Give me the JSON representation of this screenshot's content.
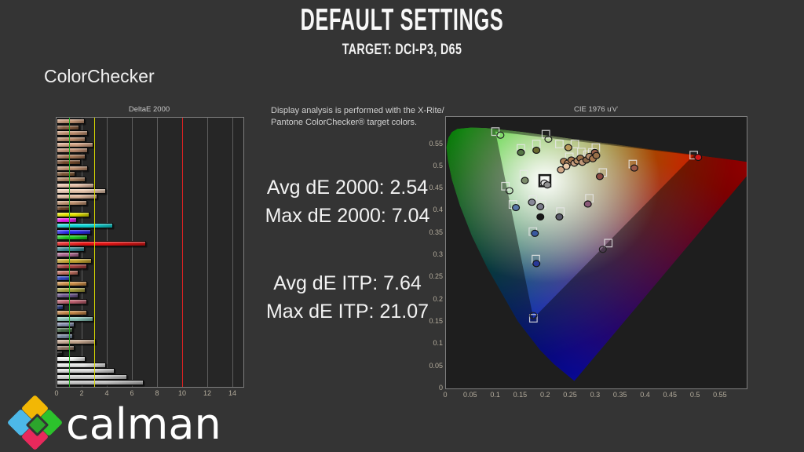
{
  "header": {
    "title": "DEFAULT SETTINGS",
    "subtitle": "TARGET: DCI-P3, D65",
    "section": "ColorChecker"
  },
  "note": {
    "line1": "Display analysis is performed with the X-Rite/",
    "line2": "Pantone ColorChecker® target colors."
  },
  "stats": {
    "avg_de2000": "Avg dE 2000: 2.54",
    "max_de2000": "Max dE 2000: 7.04",
    "avg_de_itp": "Avg dE ITP: 7.64",
    "max_de_itp": "Max dE ITP: 21.07"
  },
  "logo": {
    "text": "calman",
    "icon_colors": {
      "top": "#f2b705",
      "left": "#4db8e8",
      "right": "#2cc22c",
      "bottom": "#e8295c",
      "center": "#2ca52c"
    }
  },
  "chart_data": [
    {
      "type": "bar",
      "title": "DeltaE 2000",
      "orientation": "horizontal",
      "xlim": [
        0,
        15
      ],
      "xticks": [
        0,
        2,
        4,
        6,
        8,
        10,
        12,
        14
      ],
      "grid": true,
      "reference_lines": [
        {
          "value": 1,
          "color": "#22aa22"
        },
        {
          "value": 3,
          "color": "#d8d800"
        },
        {
          "value": 10,
          "color": "#dd2222"
        }
      ],
      "bars": [
        {
          "value": 2.1,
          "color": "#c89878"
        },
        {
          "value": 1.7,
          "color": "#8a5f42"
        },
        {
          "value": 2.4,
          "color": "#c09070"
        },
        {
          "value": 2.2,
          "color": "#b98a6a"
        },
        {
          "value": 2.8,
          "color": "#d4a284"
        },
        {
          "value": 2.4,
          "color": "#c49276"
        },
        {
          "value": 2.2,
          "color": "#a87858"
        },
        {
          "value": 1.8,
          "color": "#7a4e30"
        },
        {
          "value": 2.4,
          "color": "#c29272"
        },
        {
          "value": 1.4,
          "color": "#805838"
        },
        {
          "value": 2.2,
          "color": "#b08664"
        },
        {
          "value": 2.9,
          "color": "#e8c0a8"
        },
        {
          "value": 3.8,
          "color": "#eccab0"
        },
        {
          "value": 3.1,
          "color": "#e0b89c"
        },
        {
          "value": 2.3,
          "color": "#c39472"
        },
        {
          "value": 1.0,
          "color": "#6b4226"
        },
        {
          "value": 2.5,
          "color": "#e8e800"
        },
        {
          "value": 1.5,
          "color": "#e820e8"
        },
        {
          "value": 4.4,
          "color": "#10d8d8"
        },
        {
          "value": 2.6,
          "color": "#2828f0"
        },
        {
          "value": 2.4,
          "color": "#20cc20"
        },
        {
          "value": 7.0,
          "color": "#e81414"
        },
        {
          "value": 2.1,
          "color": "#3a8a96"
        },
        {
          "value": 1.7,
          "color": "#b06a92"
        },
        {
          "value": 2.7,
          "color": "#c8a832"
        },
        {
          "value": 2.3,
          "color": "#a84040"
        },
        {
          "value": 1.6,
          "color": "#c47060"
        },
        {
          "value": 1.0,
          "color": "#3048c0"
        },
        {
          "value": 2.3,
          "color": "#d09048"
        },
        {
          "value": 2.2,
          "color": "#a8a040"
        },
        {
          "value": 1.6,
          "color": "#705890"
        },
        {
          "value": 2.3,
          "color": "#c06070"
        },
        {
          "value": 0.45,
          "color": "#283878"
        },
        {
          "value": 2.3,
          "color": "#c88848"
        },
        {
          "value": 2.8,
          "color": "#88c4b8"
        },
        {
          "value": 1.3,
          "color": "#8890b0"
        },
        {
          "value": 1.2,
          "color": "#4a6a4a"
        },
        {
          "value": 1.2,
          "color": "#7888a0"
        },
        {
          "value": 3.0,
          "color": "#c8a890"
        },
        {
          "value": 1.3,
          "color": "#8a7060"
        },
        {
          "value": 0.4,
          "color": "#181818"
        },
        {
          "value": 2.2,
          "color": "#f5f5f5"
        },
        {
          "value": 3.8,
          "color": "#e8e8e8"
        },
        {
          "value": 4.5,
          "color": "#dcdcdc"
        },
        {
          "value": 5.5,
          "color": "#d0d0d0"
        },
        {
          "value": 6.8,
          "color": "#c4c4c4"
        }
      ]
    },
    {
      "type": "scatter",
      "title": "CIE 1976 u'v'",
      "xlim": [
        0,
        0.602
      ],
      "ylim": [
        0,
        0.611
      ],
      "xticks": [
        0,
        0.05,
        0.1,
        0.15,
        0.2,
        0.25,
        0.3,
        0.35,
        0.4,
        0.45,
        0.5,
        0.55
      ],
      "yticks": [
        0,
        0.05,
        0.1,
        0.15,
        0.2,
        0.25,
        0.3,
        0.35,
        0.4,
        0.45,
        0.5,
        0.55
      ],
      "gamut": {
        "name": "DCI-P3",
        "red": [
          0.496,
          0.525
        ],
        "green": [
          0.099,
          0.578
        ],
        "blue": [
          0.175,
          0.158
        ]
      },
      "white_point": [
        0.198,
        0.468
      ],
      "targets": [
        [
          0.099,
          0.578
        ],
        [
          0.2,
          0.572
        ],
        [
          0.181,
          0.55
        ],
        [
          0.227,
          0.55
        ],
        [
          0.258,
          0.55
        ],
        [
          0.15,
          0.54
        ],
        [
          0.3,
          0.542
        ],
        [
          0.271,
          0.532
        ],
        [
          0.283,
          0.526
        ],
        [
          0.293,
          0.531
        ],
        [
          0.247,
          0.521
        ],
        [
          0.374,
          0.505
        ],
        [
          0.496,
          0.525
        ],
        [
          0.314,
          0.486
        ],
        [
          0.156,
          0.482
        ],
        [
          0.119,
          0.455
        ],
        [
          0.134,
          0.414
        ],
        [
          0.174,
          0.425
        ],
        [
          0.192,
          0.414
        ],
        [
          0.287,
          0.428
        ],
        [
          0.229,
          0.398
        ],
        [
          0.174,
          0.353
        ],
        [
          0.18,
          0.291
        ],
        [
          0.325,
          0.327
        ],
        [
          0.175,
          0.158
        ]
      ],
      "measurements": [
        [
          0.109,
          0.57,
          null
        ],
        [
          0.205,
          0.561,
          null
        ],
        [
          0.181,
          0.536,
          "#6a6a30"
        ],
        [
          0.245,
          0.542,
          "#b89858"
        ],
        [
          0.15,
          0.531,
          "#557545"
        ],
        [
          0.298,
          0.531,
          "#97604a"
        ],
        [
          0.377,
          0.496,
          "#9a5848"
        ],
        [
          0.505,
          0.52,
          "#d41818"
        ],
        [
          0.308,
          0.477,
          "#8a4a42"
        ],
        [
          0.158,
          0.468,
          "#7a8a6a"
        ],
        [
          0.236,
          0.511,
          "#b08058"
        ],
        [
          0.244,
          0.507,
          "#c09068"
        ],
        [
          0.251,
          0.514,
          "#a87850"
        ],
        [
          0.257,
          0.507,
          "#c8a080"
        ],
        [
          0.263,
          0.512,
          "#b89068"
        ],
        [
          0.269,
          0.518,
          "#9a7048"
        ],
        [
          0.273,
          0.509,
          "#c09878"
        ],
        [
          0.281,
          0.514,
          "#8a6848"
        ],
        [
          0.287,
          0.522,
          "#b08868"
        ],
        [
          0.294,
          0.517,
          "#a87850"
        ],
        [
          0.301,
          0.524,
          "#987048"
        ],
        [
          0.241,
          0.5,
          "#e8c8a8"
        ],
        [
          0.23,
          0.492,
          "#d0a888"
        ],
        [
          0.197,
          0.462,
          "#e0e0e0"
        ],
        [
          0.203,
          0.458,
          "#909090"
        ],
        [
          0.127,
          0.445,
          null
        ],
        [
          0.14,
          0.407,
          "#5878a8"
        ],
        [
          0.172,
          0.419,
          "#888898"
        ],
        [
          0.189,
          0.409,
          "#787888"
        ],
        [
          0.284,
          0.415,
          "#8a5a78"
        ],
        [
          0.227,
          0.386,
          "#585868"
        ],
        [
          0.189,
          0.386,
          "#181818"
        ],
        [
          0.178,
          0.349,
          "#3858a0"
        ],
        [
          0.181,
          0.281,
          "#283898"
        ],
        [
          0.314,
          0.313,
          null
        ],
        [
          0.175,
          0.164,
          null
        ]
      ]
    }
  ]
}
